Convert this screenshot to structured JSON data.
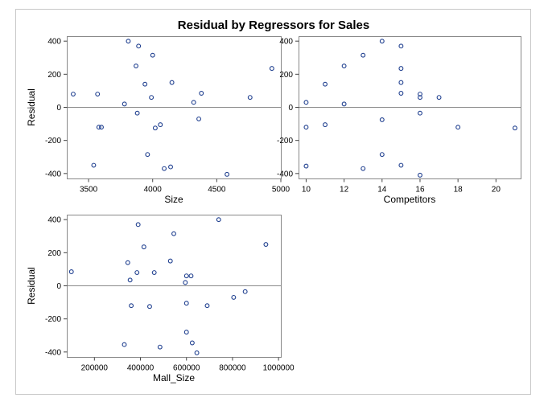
{
  "title": "Residual by Regressors for Sales",
  "colors": {
    "marker": "#1f3f8f",
    "refline": "#8a8a8a",
    "frame": "#c8c8c8"
  },
  "chart_data": [
    {
      "type": "scatter",
      "xlabel": "Size",
      "ylabel": "Residual",
      "xlim": [
        3330,
        5000
      ],
      "ylim": [
        -430,
        430
      ],
      "xticks": [
        3500,
        4000,
        4500,
        5000
      ],
      "yticks": [
        -400,
        -200,
        0,
        200,
        400
      ],
      "reference_line_y": 0,
      "points": [
        {
          "x": 3380,
          "y": 80
        },
        {
          "x": 3540,
          "y": -350
        },
        {
          "x": 3570,
          "y": 80
        },
        {
          "x": 3580,
          "y": -120
        },
        {
          "x": 3600,
          "y": -120
        },
        {
          "x": 3780,
          "y": 20
        },
        {
          "x": 3810,
          "y": 400
        },
        {
          "x": 3870,
          "y": 250
        },
        {
          "x": 3880,
          "y": -35
        },
        {
          "x": 3890,
          "y": 370
        },
        {
          "x": 3940,
          "y": 140
        },
        {
          "x": 3960,
          "y": -285
        },
        {
          "x": 3990,
          "y": 60
        },
        {
          "x": 4000,
          "y": 315
        },
        {
          "x": 4020,
          "y": -125
        },
        {
          "x": 4060,
          "y": -105
        },
        {
          "x": 4090,
          "y": -370
        },
        {
          "x": 4140,
          "y": -360
        },
        {
          "x": 4150,
          "y": 150
        },
        {
          "x": 4320,
          "y": 30
        },
        {
          "x": 4360,
          "y": -70
        },
        {
          "x": 4380,
          "y": 85
        },
        {
          "x": 4580,
          "y": -405
        },
        {
          "x": 4760,
          "y": 60
        },
        {
          "x": 4930,
          "y": 235
        }
      ]
    },
    {
      "type": "scatter",
      "xlabel": "Competitors",
      "ylabel": "",
      "xlim": [
        9.6,
        21.3
      ],
      "ylim": [
        -430,
        430
      ],
      "xticks": [
        10,
        12,
        14,
        16,
        18,
        20
      ],
      "yticks": [
        -400,
        -200,
        0,
        200,
        400
      ],
      "reference_line_y": 0,
      "points": [
        {
          "x": 10,
          "y": 30
        },
        {
          "x": 10,
          "y": -120
        },
        {
          "x": 10,
          "y": -355
        },
        {
          "x": 11,
          "y": 140
        },
        {
          "x": 11,
          "y": -105
        },
        {
          "x": 12,
          "y": 250
        },
        {
          "x": 12,
          "y": 20
        },
        {
          "x": 13,
          "y": 315
        },
        {
          "x": 13,
          "y": -370
        },
        {
          "x": 14,
          "y": 400
        },
        {
          "x": 14,
          "y": -75
        },
        {
          "x": 14,
          "y": -285
        },
        {
          "x": 15,
          "y": 370
        },
        {
          "x": 15,
          "y": 235
        },
        {
          "x": 15,
          "y": 150
        },
        {
          "x": 15,
          "y": 85
        },
        {
          "x": 15,
          "y": -350
        },
        {
          "x": 16,
          "y": 80
        },
        {
          "x": 16,
          "y": 60
        },
        {
          "x": 16,
          "y": -35
        },
        {
          "x": 16,
          "y": -410
        },
        {
          "x": 17,
          "y": 60
        },
        {
          "x": 18,
          "y": -120
        },
        {
          "x": 21,
          "y": -125
        }
      ]
    },
    {
      "type": "scatter",
      "xlabel": "Mall_Size",
      "ylabel": "Residual",
      "xlim": [
        80000,
        1010000
      ],
      "ylim": [
        -430,
        430
      ],
      "xticks": [
        200000,
        400000,
        600000,
        800000,
        1000000
      ],
      "yticks": [
        -400,
        -200,
        0,
        200,
        400
      ],
      "reference_line_y": 0,
      "points": [
        {
          "x": 100000,
          "y": 85
        },
        {
          "x": 330000,
          "y": -355
        },
        {
          "x": 345000,
          "y": 140
        },
        {
          "x": 355000,
          "y": 35
        },
        {
          "x": 360000,
          "y": -120
        },
        {
          "x": 385000,
          "y": 80
        },
        {
          "x": 390000,
          "y": 370
        },
        {
          "x": 415000,
          "y": 235
        },
        {
          "x": 440000,
          "y": -125
        },
        {
          "x": 460000,
          "y": 80
        },
        {
          "x": 485000,
          "y": -370
        },
        {
          "x": 530000,
          "y": 150
        },
        {
          "x": 545000,
          "y": 315
        },
        {
          "x": 595000,
          "y": 20
        },
        {
          "x": 600000,
          "y": 60
        },
        {
          "x": 600000,
          "y": -105
        },
        {
          "x": 600000,
          "y": -280
        },
        {
          "x": 620000,
          "y": 60
        },
        {
          "x": 625000,
          "y": -345
        },
        {
          "x": 645000,
          "y": -405
        },
        {
          "x": 690000,
          "y": -120
        },
        {
          "x": 740000,
          "y": 400
        },
        {
          "x": 805000,
          "y": -70
        },
        {
          "x": 855000,
          "y": -35
        },
        {
          "x": 945000,
          "y": 250
        }
      ]
    }
  ]
}
